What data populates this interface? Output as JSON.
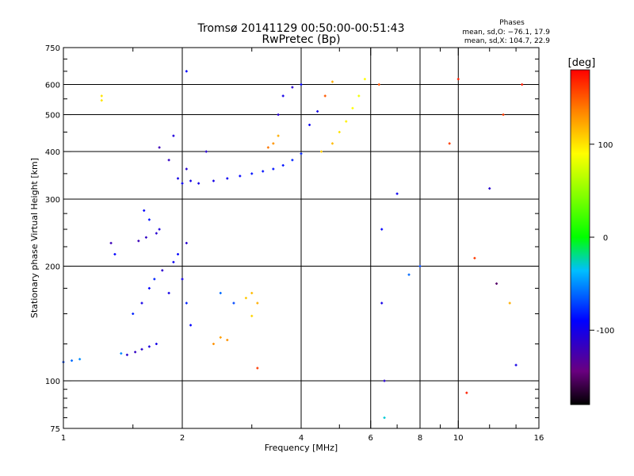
{
  "chart_data": {
    "type": "scatter",
    "title": "Tromsø 20141129 00:50:00-00:51:43",
    "subtitle": "RwPretec (Bp)",
    "xlabel": "Frequency [MHz]",
    "ylabel": "Stationary phase Virtual Height [km]",
    "x_scale": "log",
    "y_scale": "log",
    "xlim": [
      1,
      16
    ],
    "ylim": [
      75,
      750
    ],
    "x_ticks": [
      1,
      2,
      4,
      6,
      8,
      10,
      16
    ],
    "y_ticks": [
      75,
      100,
      200,
      300,
      400,
      500,
      600,
      750
    ],
    "x_minor_ticks": [
      1.5,
      3,
      5,
      7,
      9,
      12,
      14
    ],
    "y_minor_ticks": [
      80,
      85,
      90,
      95,
      125,
      150,
      175,
      225,
      250,
      275,
      350,
      450,
      550,
      650,
      700
    ],
    "x_grid": [
      2,
      4,
      6,
      8,
      10
    ],
    "y_grid": [
      100,
      200,
      300,
      400,
      500,
      600
    ],
    "phase_stats": {
      "title": "Phases",
      "line_o": "mean, sd,O: −76.1, 17.9",
      "line_x": "mean, sd,X: 104.7, 22.9"
    },
    "colorbar": {
      "label": "[deg]",
      "ticks": [
        100,
        0,
        -100
      ],
      "range": [
        -180,
        180
      ],
      "colormap": "rainbow"
    },
    "series": [
      {
        "values_note_key": "phase_deg",
        "points": [
          {
            "x": 1.0,
            "y": 112,
            "phase": -70
          },
          {
            "x": 1.05,
            "y": 113,
            "phase": -60
          },
          {
            "x": 1.1,
            "y": 114,
            "phase": -50
          },
          {
            "x": 1.25,
            "y": 560,
            "phase": 100
          },
          {
            "x": 1.25,
            "y": 545,
            "phase": 100
          },
          {
            "x": 1.32,
            "y": 230,
            "phase": -120
          },
          {
            "x": 1.35,
            "y": 215,
            "phase": -90
          },
          {
            "x": 1.4,
            "y": 118,
            "phase": -50
          },
          {
            "x": 1.45,
            "y": 117,
            "phase": -110
          },
          {
            "x": 1.52,
            "y": 119,
            "phase": -115
          },
          {
            "x": 1.58,
            "y": 121,
            "phase": -110
          },
          {
            "x": 1.65,
            "y": 123,
            "phase": -105
          },
          {
            "x": 1.72,
            "y": 125,
            "phase": -100
          },
          {
            "x": 1.55,
            "y": 233,
            "phase": -120
          },
          {
            "x": 1.62,
            "y": 238,
            "phase": -115
          },
          {
            "x": 1.72,
            "y": 244,
            "phase": -110
          },
          {
            "x": 1.75,
            "y": 250,
            "phase": -105
          },
          {
            "x": 1.6,
            "y": 280,
            "phase": -90
          },
          {
            "x": 1.65,
            "y": 265,
            "phase": -85
          },
          {
            "x": 1.5,
            "y": 150,
            "phase": -80
          },
          {
            "x": 1.58,
            "y": 160,
            "phase": -100
          },
          {
            "x": 1.65,
            "y": 175,
            "phase": -90
          },
          {
            "x": 1.7,
            "y": 185,
            "phase": -80
          },
          {
            "x": 1.78,
            "y": 195,
            "phase": -110
          },
          {
            "x": 1.85,
            "y": 170,
            "phase": -100
          },
          {
            "x": 1.9,
            "y": 205,
            "phase": -95
          },
          {
            "x": 1.95,
            "y": 215,
            "phase": -90
          },
          {
            "x": 2.0,
            "y": 185,
            "phase": -100
          },
          {
            "x": 2.05,
            "y": 230,
            "phase": -110
          },
          {
            "x": 2.05,
            "y": 160,
            "phase": -80
          },
          {
            "x": 2.1,
            "y": 140,
            "phase": -90
          },
          {
            "x": 1.75,
            "y": 410,
            "phase": -120
          },
          {
            "x": 1.85,
            "y": 380,
            "phase": -115
          },
          {
            "x": 1.9,
            "y": 440,
            "phase": -105
          },
          {
            "x": 1.95,
            "y": 340,
            "phase": -100
          },
          {
            "x": 2.0,
            "y": 330,
            "phase": -95
          },
          {
            "x": 2.05,
            "y": 360,
            "phase": -110
          },
          {
            "x": 2.05,
            "y": 650,
            "phase": -90
          },
          {
            "x": 2.1,
            "y": 335,
            "phase": -100
          },
          {
            "x": 2.2,
            "y": 330,
            "phase": -100
          },
          {
            "x": 2.3,
            "y": 400,
            "phase": -110
          },
          {
            "x": 2.4,
            "y": 335,
            "phase": -100
          },
          {
            "x": 2.6,
            "y": 340,
            "phase": -95
          },
          {
            "x": 2.8,
            "y": 345,
            "phase": -90
          },
          {
            "x": 3.0,
            "y": 350,
            "phase": -85
          },
          {
            "x": 3.2,
            "y": 355,
            "phase": -85
          },
          {
            "x": 3.4,
            "y": 360,
            "phase": -85
          },
          {
            "x": 3.6,
            "y": 368,
            "phase": -85
          },
          {
            "x": 3.8,
            "y": 380,
            "phase": -80
          },
          {
            "x": 4.0,
            "y": 395,
            "phase": -80
          },
          {
            "x": 2.4,
            "y": 125,
            "phase": 130
          },
          {
            "x": 2.5,
            "y": 130,
            "phase": 125
          },
          {
            "x": 2.6,
            "y": 128,
            "phase": 130
          },
          {
            "x": 2.5,
            "y": 170,
            "phase": -60
          },
          {
            "x": 2.7,
            "y": 160,
            "phase": -70
          },
          {
            "x": 2.9,
            "y": 165,
            "phase": 110
          },
          {
            "x": 3.0,
            "y": 170,
            "phase": 115
          },
          {
            "x": 3.1,
            "y": 160,
            "phase": 120
          },
          {
            "x": 3.0,
            "y": 148,
            "phase": 105
          },
          {
            "x": 3.1,
            "y": 108,
            "phase": 160
          },
          {
            "x": 3.3,
            "y": 410,
            "phase": 140
          },
          {
            "x": 3.4,
            "y": 420,
            "phase": 130
          },
          {
            "x": 3.5,
            "y": 440,
            "phase": 120
          },
          {
            "x": 3.5,
            "y": 500,
            "phase": -110
          },
          {
            "x": 3.6,
            "y": 560,
            "phase": -100
          },
          {
            "x": 3.8,
            "y": 590,
            "phase": -110
          },
          {
            "x": 4.0,
            "y": 600,
            "phase": -90
          },
          {
            "x": 4.2,
            "y": 470,
            "phase": -95
          },
          {
            "x": 4.4,
            "y": 510,
            "phase": -100
          },
          {
            "x": 4.6,
            "y": 560,
            "phase": 150
          },
          {
            "x": 4.8,
            "y": 610,
            "phase": 120
          },
          {
            "x": 4.5,
            "y": 400,
            "phase": 110
          },
          {
            "x": 4.8,
            "y": 420,
            "phase": 115
          },
          {
            "x": 5.0,
            "y": 450,
            "phase": 100
          },
          {
            "x": 5.2,
            "y": 480,
            "phase": 95
          },
          {
            "x": 5.4,
            "y": 520,
            "phase": 90
          },
          {
            "x": 5.6,
            "y": 560,
            "phase": 85
          },
          {
            "x": 5.8,
            "y": 620,
            "phase": 90
          },
          {
            "x": 6.3,
            "y": 600,
            "phase": 150
          },
          {
            "x": 6.4,
            "y": 250,
            "phase": -90
          },
          {
            "x": 6.4,
            "y": 160,
            "phase": -100
          },
          {
            "x": 6.5,
            "y": 100,
            "phase": -110
          },
          {
            "x": 6.5,
            "y": 80,
            "phase": -30
          },
          {
            "x": 7.0,
            "y": 310,
            "phase": -95
          },
          {
            "x": 7.5,
            "y": 190,
            "phase": -60
          },
          {
            "x": 8.0,
            "y": 200,
            "phase": -70
          },
          {
            "x": 9.5,
            "y": 420,
            "phase": 160
          },
          {
            "x": 10.0,
            "y": 620,
            "phase": 170
          },
          {
            "x": 10.5,
            "y": 93,
            "phase": 170
          },
          {
            "x": 11.0,
            "y": 210,
            "phase": 160
          },
          {
            "x": 12.0,
            "y": 320,
            "phase": -110
          },
          {
            "x": 12.5,
            "y": 180,
            "phase": -150
          },
          {
            "x": 13.0,
            "y": 500,
            "phase": 160
          },
          {
            "x": 13.5,
            "y": 160,
            "phase": 120
          },
          {
            "x": 14.0,
            "y": 110,
            "phase": -100
          },
          {
            "x": 14.5,
            "y": 600,
            "phase": 170
          }
        ]
      }
    ]
  }
}
